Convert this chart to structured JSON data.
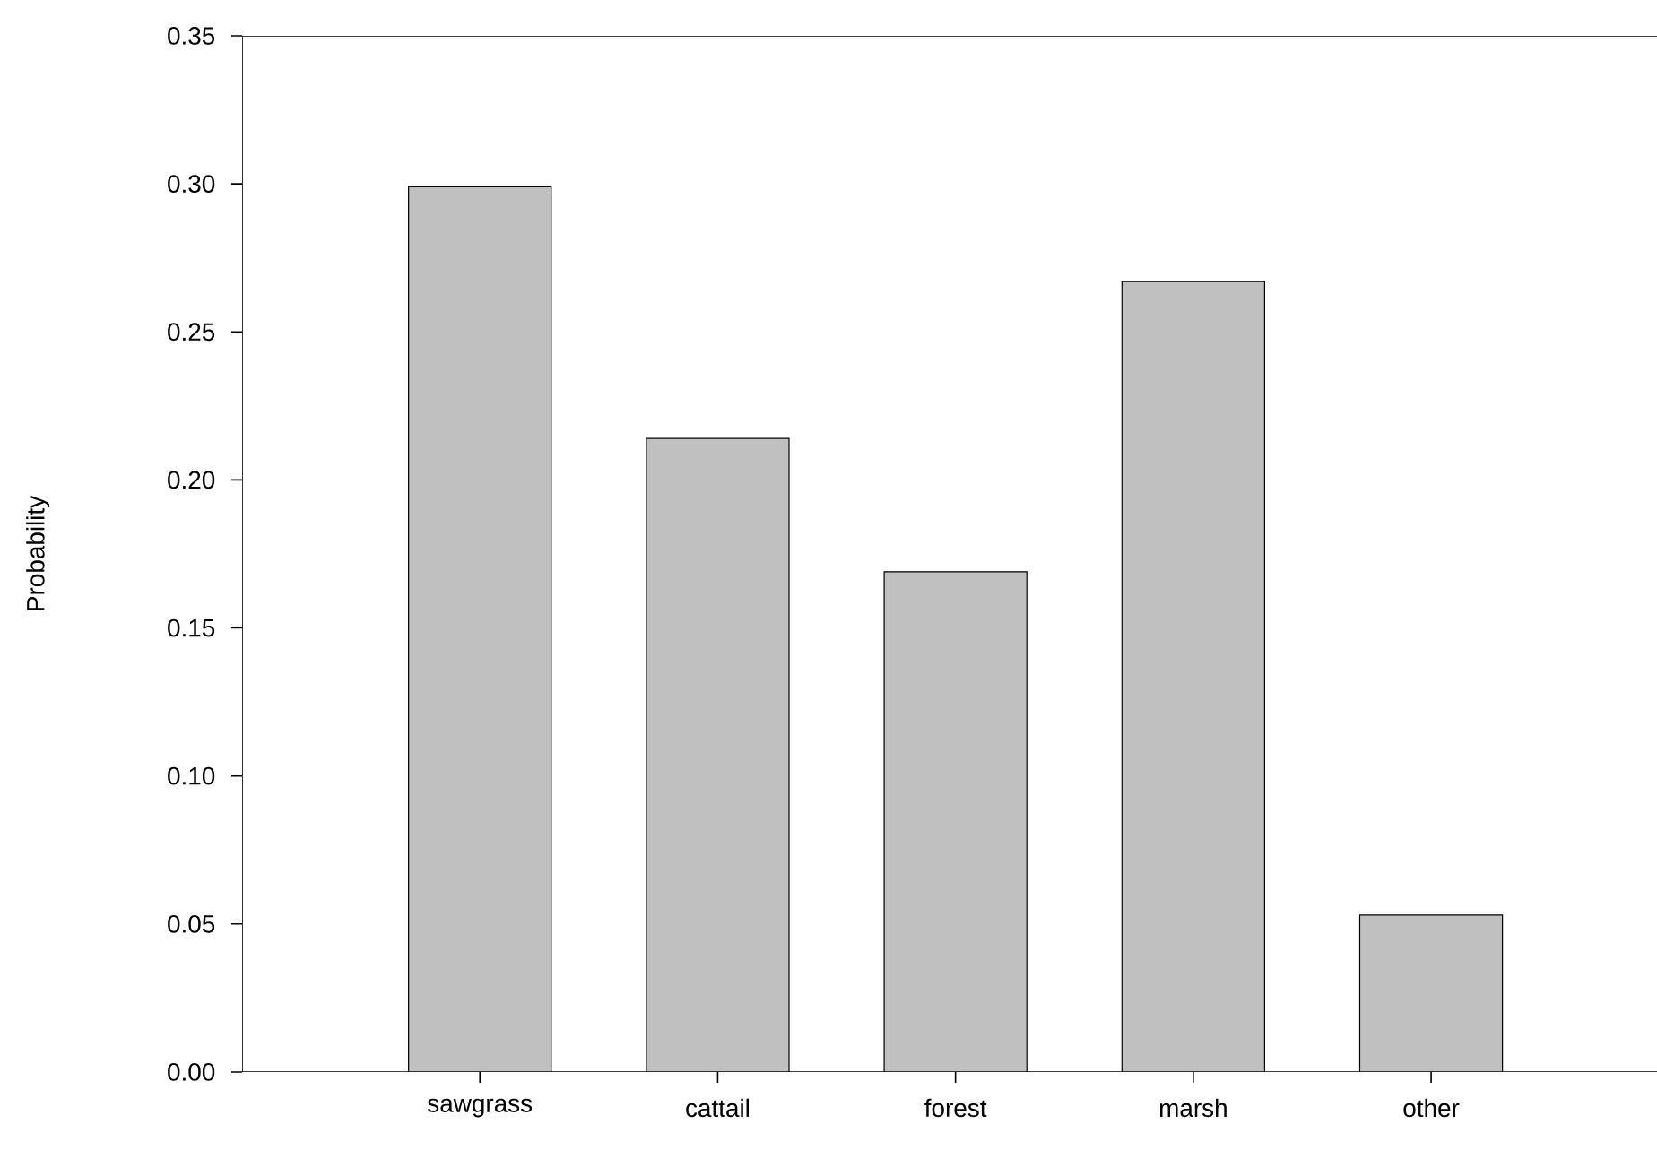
{
  "chart_data": {
    "type": "bar",
    "ylabel": "Probability",
    "categories": [
      "sawgrass",
      "cattail",
      "forest",
      "marsh",
      "other"
    ],
    "values": [
      0.299,
      0.214,
      0.169,
      0.267,
      0.053
    ],
    "color": "#c0c0c0",
    "ylim": [
      0,
      0.35
    ],
    "yticks": [
      {
        "value": 0,
        "label": "0.00"
      },
      {
        "value": 0.05,
        "label": "0.05"
      },
      {
        "value": 0.1,
        "label": "0.10"
      },
      {
        "value": 0.15,
        "label": "0.15"
      },
      {
        "value": 0.2,
        "label": "0.20"
      },
      {
        "value": 0.25,
        "label": "0.25"
      },
      {
        "value": 0.3,
        "label": "0.30"
      },
      {
        "value": 0.35,
        "label": "0.35"
      }
    ],
    "grid": false
  }
}
